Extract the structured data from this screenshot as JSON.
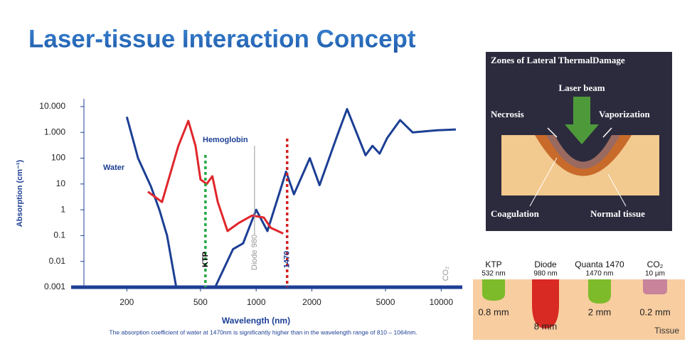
{
  "slide_title": "Laser-tissue Interaction Concept",
  "chart_data": {
    "type": "line",
    "x_scale": "log",
    "y_scale": "log",
    "x_label": "Wavelength (nm)",
    "y_label": "Absorption (cm⁻¹)",
    "caption": "The absorption coefficient of water at 1470nm is significantly higher than in the wavelength range of 810 – 1064nm.",
    "xlim": [
      100,
      13000
    ],
    "ylim": [
      0.001,
      20000
    ],
    "xticks": [
      200,
      500,
      1000,
      2000,
      5000,
      10000
    ],
    "yticks": [
      0.001,
      0.01,
      0.1,
      1,
      10,
      100,
      {
        "value": 1000,
        "label": "1.000"
      },
      {
        "value": 10000,
        "label": "10.000"
      }
    ],
    "grid": false,
    "series": [
      {
        "name": "Water",
        "color": "#1c3f94",
        "x": [
          200,
          230,
          270,
          300,
          330,
          370,
          600,
          750,
          850,
          1000,
          1150,
          1450,
          1600,
          1950,
          2200,
          2750,
          3100,
          3900,
          4250,
          4650,
          5100,
          6000,
          7000,
          9500,
          12000
        ],
        "values": [
          4000,
          100,
          8,
          1,
          0.1,
          0.001,
          0.001,
          0.03,
          0.05,
          1,
          0.15,
          30,
          4,
          100,
          9,
          800,
          8000,
          130,
          300,
          150,
          600,
          3000,
          1000,
          1200,
          1300
        ]
      },
      {
        "name": "Hemoglobin",
        "color": "#e0262b",
        "x": [
          260,
          310,
          380,
          430,
          470,
          500,
          540,
          580,
          620,
          700,
          800,
          950,
          1100,
          1200,
          1400
        ],
        "values": [
          5,
          2,
          300,
          2800,
          300,
          15,
          10,
          20,
          2,
          0.15,
          0.3,
          0.6,
          0.5,
          0.2,
          0.12
        ]
      }
    ],
    "markers": [
      {
        "label": "KTP",
        "x": 532,
        "color": "#22a844",
        "style": "dotted"
      },
      {
        "label": "Diode 980",
        "x": 980,
        "color": "#999999",
        "style": "solid"
      },
      {
        "label": "1470",
        "x": 1470,
        "color": "#d42020",
        "style": "dotted"
      },
      {
        "label": "CO₂",
        "x": 10600,
        "color": "#999999"
      }
    ]
  },
  "thermal_damage": {
    "title": "Zones of Lateral ThermalDamage",
    "laser": "Laser beam",
    "necrosis": "Necrosis",
    "vaporization": "Vaporization",
    "coagulation": "Coagulation",
    "normal": "Normal tissue"
  },
  "tissue_depth": {
    "items": [
      {
        "name": "KTP",
        "wavelength": "532 nm",
        "depth": "0.8 mm"
      },
      {
        "name": "Diode",
        "wavelength": "980 nm",
        "depth": "8 mm"
      },
      {
        "name": "Quanta 1470",
        "wavelength": "1470 nm",
        "depth": "2 mm"
      },
      {
        "name": "CO₂",
        "wavelength": "10 µm",
        "depth": "0.2 mm"
      }
    ],
    "tissue": "Tissue"
  }
}
